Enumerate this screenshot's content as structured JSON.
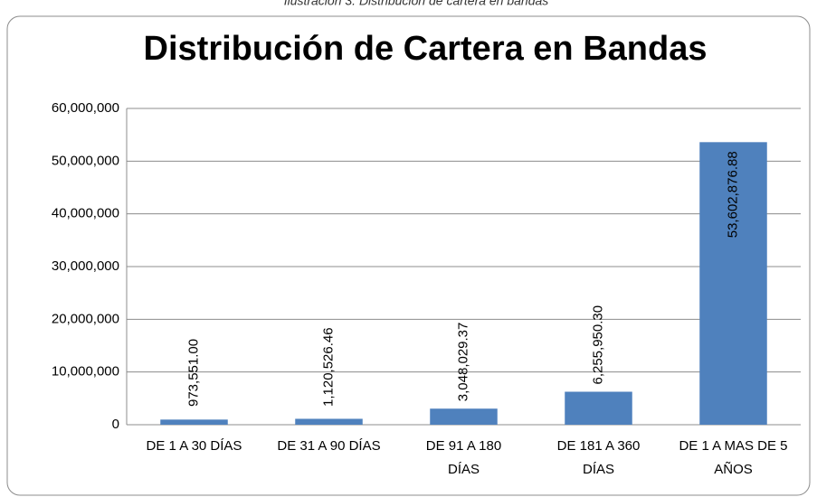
{
  "caption": "Ilustración 3. Distribución de cartera en bandas",
  "chart_data": {
    "type": "bar",
    "title": "Distribución de Cartera en Bandas",
    "categories": [
      "DE 1 A 30 DÍAS",
      "DE 31 A 90 DÍAS",
      "DE 91 A 180 DÍAS",
      "DE 181 A 360 DÍAS",
      "DE 1 A MAS DE 5 AÑOS"
    ],
    "values": [
      973551.0,
      1120526.46,
      3048029.37,
      6255950.3,
      53602876.88
    ],
    "value_labels": [
      "973,551.00",
      "1,120,526.46",
      "3,048,029.37",
      "6,255,950.30",
      "53,602,876.88"
    ],
    "color": "#4f81bd",
    "ylim": [
      0,
      60000000
    ],
    "yticks": [
      0,
      {
        "value": 10000000,
        "label": "10,000,000"
      },
      {
        "value": 20000000,
        "label": "20,000,000"
      },
      {
        "value": 30000000,
        "label": "30,000,000"
      },
      {
        "value": 40000000,
        "label": "40,000,000"
      },
      {
        "value": 50000000,
        "label": "50,000,000"
      },
      {
        "value": 60000000,
        "label": "60,000,000"
      }
    ],
    "grid": true
  }
}
